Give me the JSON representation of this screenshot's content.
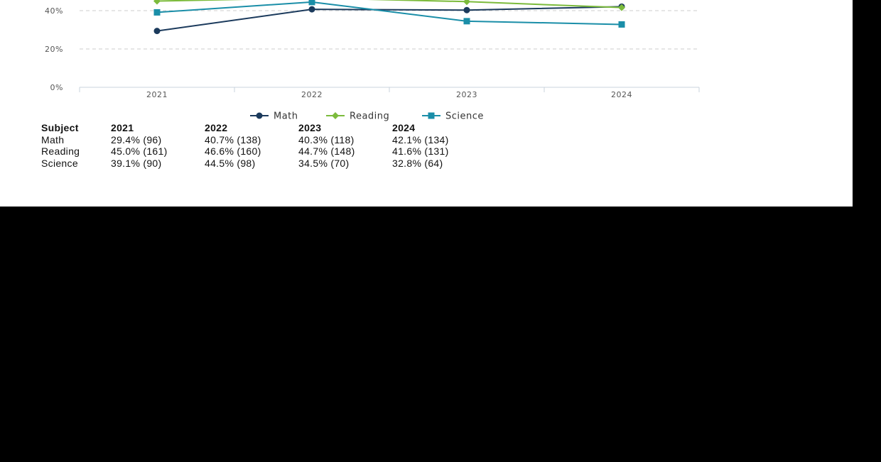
{
  "chart_data": {
    "type": "line",
    "categories": [
      "2021",
      "2022",
      "2023",
      "2024"
    ],
    "y_ticks": [
      {
        "value": 0,
        "label": "0%"
      },
      {
        "value": 20,
        "label": "20%"
      },
      {
        "value": 40,
        "label": "40%"
      }
    ],
    "ylim": [
      0,
      40
    ],
    "grid": true,
    "legend": "bottom-center",
    "series": [
      {
        "name": "Math",
        "values": [
          29.4,
          40.7,
          40.3,
          42.1
        ],
        "color": "#1b3a5c",
        "marker": "circle"
      },
      {
        "name": "Reading",
        "values": [
          45.0,
          46.6,
          44.7,
          41.6
        ],
        "color": "#7cbb3c",
        "marker": "diamond"
      },
      {
        "name": "Science",
        "values": [
          39.1,
          44.5,
          34.5,
          32.8
        ],
        "color": "#1a8ea8",
        "marker": "square"
      }
    ]
  },
  "table": {
    "header": [
      "Subject",
      "2021",
      "2022",
      "2023",
      "2024"
    ],
    "rows": [
      [
        "Math",
        "29.4% (96)",
        "40.7% (138)",
        "40.3% (118)",
        "42.1% (134)"
      ],
      [
        "Reading",
        "45.0% (161)",
        "46.6% (160)",
        "44.7% (148)",
        "41.6% (131)"
      ],
      [
        "Science",
        "39.1% (90)",
        "44.5% (98)",
        "34.5% (70)",
        "32.8% (64)"
      ]
    ]
  }
}
